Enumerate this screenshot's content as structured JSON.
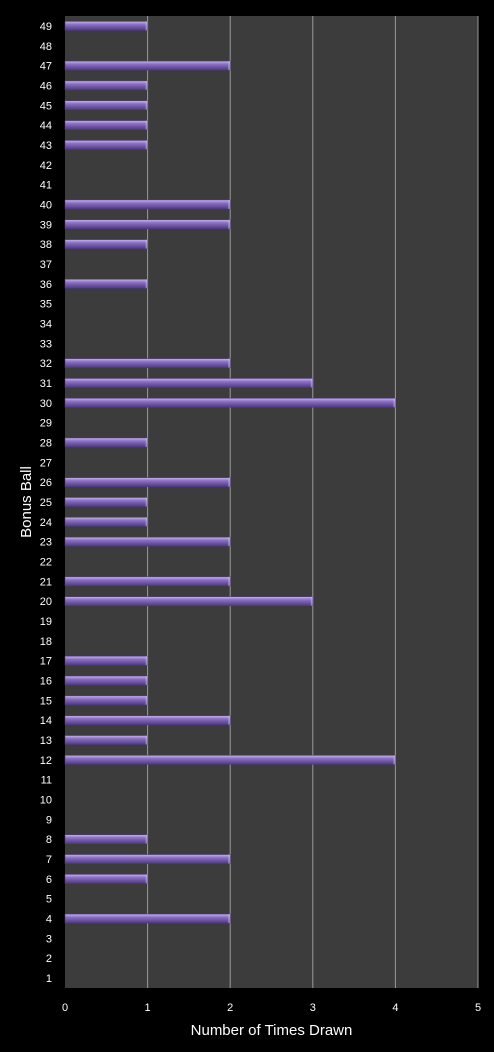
{
  "chart_data": {
    "type": "bar",
    "orientation": "horizontal",
    "xlabel": "Number of Times Drawn",
    "ylabel": "Bonus Ball",
    "xlim": [
      0,
      5
    ],
    "xticks": [
      0,
      1,
      2,
      3,
      4,
      5
    ],
    "grid": true,
    "legend": "none",
    "categories": [
      "1",
      "2",
      "3",
      "4",
      "5",
      "6",
      "7",
      "8",
      "9",
      "10",
      "11",
      "12",
      "13",
      "14",
      "15",
      "16",
      "17",
      "18",
      "19",
      "20",
      "21",
      "22",
      "23",
      "24",
      "25",
      "26",
      "27",
      "28",
      "29",
      "30",
      "31",
      "32",
      "33",
      "34",
      "35",
      "36",
      "37",
      "38",
      "39",
      "40",
      "41",
      "42",
      "43",
      "44",
      "45",
      "46",
      "47",
      "48",
      "49"
    ],
    "values": [
      0,
      0,
      0,
      2,
      0,
      1,
      2,
      1,
      0,
      0,
      0,
      4,
      1,
      2,
      1,
      1,
      1,
      0,
      0,
      3,
      2,
      0,
      2,
      1,
      1,
      2,
      0,
      1,
      0,
      4,
      3,
      2,
      0,
      0,
      0,
      1,
      0,
      1,
      2,
      2,
      0,
      0,
      1,
      1,
      1,
      1,
      2,
      0,
      1
    ],
    "colors": {
      "background": "#000000",
      "plot_area": "#3c3c3c",
      "gridline": "#9a9a9a",
      "bar_fill": "#8b6fc4",
      "bar_highlight": "#c6b4ef",
      "bar_shadow": "#4e3a80",
      "text": "#ffffff"
    }
  }
}
